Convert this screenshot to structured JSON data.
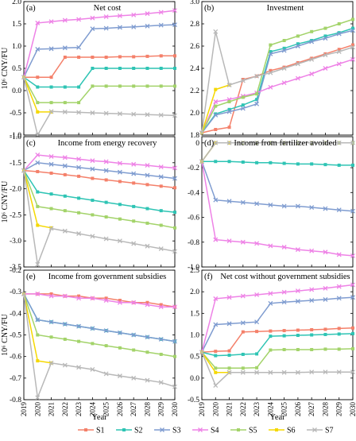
{
  "years": [
    "2019",
    "2020",
    "2021",
    "2022",
    "2023",
    "2024",
    "2025",
    "2026",
    "2027",
    "2028",
    "2029",
    "2030"
  ],
  "xlabel": "Year",
  "ylabel_unit": "10⁶ CNY/FU",
  "legend": [
    {
      "name": "S1",
      "color": "#f4806a",
      "marker": "square"
    },
    {
      "name": "S2",
      "color": "#2ec4b4",
      "marker": "square"
    },
    {
      "name": "S3",
      "color": "#7f9cd0",
      "marker": "x"
    },
    {
      "name": "S4",
      "color": "#ee82e6",
      "marker": "x"
    },
    {
      "name": "S5",
      "color": "#a3d36a",
      "marker": "square"
    },
    {
      "name": "S6",
      "color": "#f5d800",
      "marker": "square"
    },
    {
      "name": "S7",
      "color": "#b8b8b8",
      "marker": "x"
    }
  ],
  "chart_data": [
    {
      "panel": "(a)",
      "title": "Net cost",
      "type": "line",
      "ylim": [
        -1.0,
        2.0
      ],
      "yticks": [
        "-1.0",
        "-0.5",
        "0.0",
        "0.5",
        "1.0",
        "1.5",
        "2.0"
      ],
      "show_ylabel": true,
      "show_xticks": false,
      "series": [
        {
          "name": "S1",
          "values": [
            0.3,
            0.3,
            0.3,
            0.75,
            0.75,
            0.75,
            0.75,
            0.76,
            0.76,
            0.77,
            0.78,
            0.78
          ]
        },
        {
          "name": "S2",
          "values": [
            0.3,
            0.08,
            0.08,
            0.08,
            0.08,
            0.5,
            0.5,
            0.5,
            0.5,
            0.5,
            0.5,
            0.5
          ]
        },
        {
          "name": "S3",
          "values": [
            0.3,
            0.93,
            0.94,
            0.96,
            0.97,
            1.39,
            1.4,
            1.42,
            1.43,
            1.45,
            1.47,
            1.48
          ]
        },
        {
          "name": "S4",
          "values": [
            0.3,
            1.52,
            1.55,
            1.58,
            1.6,
            1.63,
            1.66,
            1.68,
            1.7,
            1.73,
            1.76,
            1.8
          ]
        },
        {
          "name": "S5",
          "values": [
            0.3,
            -0.27,
            -0.27,
            -0.27,
            -0.27,
            0.1,
            0.1,
            0.1,
            0.1,
            0.1,
            0.1,
            0.1
          ]
        },
        {
          "name": "S6",
          "values": [
            0.3,
            -0.48,
            -0.48
          ]
        },
        {
          "name": "S7",
          "values": [
            0.3,
            -1.0,
            -0.47,
            -0.48,
            -0.49,
            -0.5,
            -0.51,
            -0.52,
            -0.53,
            -0.54,
            -0.55,
            -0.56
          ]
        }
      ]
    },
    {
      "panel": "(b)",
      "title": "Investment",
      "type": "line",
      "ylim": [
        1.8,
        3.0
      ],
      "yticks": [
        "1.8",
        "2.0",
        "2.2",
        "2.4",
        "2.6",
        "2.8",
        "3.0"
      ],
      "show_ylabel": false,
      "show_xticks": false,
      "series": [
        {
          "name": "S1",
          "values": [
            1.82,
            1.85,
            1.87,
            2.3,
            2.33,
            2.38,
            2.41,
            2.45,
            2.49,
            2.53,
            2.57,
            2.61
          ]
        },
        {
          "name": "S2",
          "values": [
            1.82,
            1.99,
            2.03,
            2.07,
            2.12,
            2.55,
            2.58,
            2.62,
            2.65,
            2.69,
            2.72,
            2.76
          ]
        },
        {
          "name": "S3",
          "values": [
            1.82,
            1.98,
            2.01,
            2.04,
            2.08,
            2.53,
            2.56,
            2.6,
            2.64,
            2.67,
            2.71,
            2.74
          ]
        },
        {
          "name": "S4",
          "values": [
            1.82,
            2.1,
            2.12,
            2.15,
            2.18,
            2.23,
            2.27,
            2.31,
            2.35,
            2.4,
            2.44,
            2.48
          ]
        },
        {
          "name": "S5",
          "values": [
            1.82,
            2.06,
            2.1,
            2.14,
            2.17,
            2.61,
            2.65,
            2.69,
            2.73,
            2.76,
            2.8,
            2.84
          ]
        },
        {
          "name": "S6",
          "values": [
            1.82,
            2.21,
            2.25
          ]
        },
        {
          "name": "S7",
          "values": [
            1.82,
            2.73,
            2.25,
            2.29,
            2.33,
            2.36,
            2.4,
            2.44,
            2.48,
            2.52,
            2.55,
            2.59
          ]
        }
      ]
    },
    {
      "panel": "(c)",
      "title": "Income from energy recovery",
      "type": "line",
      "ylim": [
        -3.5,
        -1.0
      ],
      "yticks": [
        "-3.5",
        "-3.0",
        "-2.5",
        "-2.0",
        "-1.5",
        "-1.0"
      ],
      "show_ylabel": true,
      "show_xticks": false,
      "series": [
        {
          "name": "S1",
          "values": [
            -1.65,
            -1.67,
            -1.7,
            -1.73,
            -1.76,
            -1.8,
            -1.83,
            -1.86,
            -1.89,
            -1.92,
            -1.95,
            -1.98
          ]
        },
        {
          "name": "S2",
          "values": [
            -1.65,
            -2.06,
            -2.1,
            -2.14,
            -2.18,
            -2.22,
            -2.26,
            -2.3,
            -2.34,
            -2.38,
            -2.42,
            -2.45
          ]
        },
        {
          "name": "S3",
          "values": [
            -1.65,
            -1.5,
            -1.53,
            -1.56,
            -1.59,
            -1.62,
            -1.65,
            -1.68,
            -1.71,
            -1.74,
            -1.77,
            -1.8
          ]
        },
        {
          "name": "S4",
          "values": [
            -1.65,
            -1.35,
            -1.38,
            -1.4,
            -1.43,
            -1.46,
            -1.48,
            -1.51,
            -1.53,
            -1.55,
            -1.58,
            -1.6
          ]
        },
        {
          "name": "S5",
          "values": [
            -1.65,
            -2.34,
            -2.38,
            -2.42,
            -2.46,
            -2.5,
            -2.54,
            -2.58,
            -2.62,
            -2.66,
            -2.7,
            -2.75
          ]
        },
        {
          "name": "S6",
          "values": [
            -1.65,
            -2.7,
            -2.75
          ]
        },
        {
          "name": "S7",
          "values": [
            -1.65,
            -3.45,
            -2.76,
            -2.81,
            -2.86,
            -2.91,
            -2.96,
            -3.0,
            -3.05,
            -3.1,
            -3.15,
            -3.2
          ]
        }
      ]
    },
    {
      "panel": "(d)",
      "title": "Income from fertilizer avoided",
      "type": "line",
      "ylim": [
        -1.0,
        0.05
      ],
      "yticks": [
        "-1.0",
        "-0.8",
        "-0.6",
        "-0.4",
        "-0.2",
        "0"
      ],
      "show_ylabel": false,
      "show_xticks": false,
      "series": [
        {
          "name": "S1",
          "values": [
            -0.15,
            0,
            0,
            0,
            0,
            0,
            0,
            0,
            0,
            0,
            0,
            0
          ]
        },
        {
          "name": "S2",
          "values": [
            -0.15,
            -0.15,
            -0.15,
            -0.155,
            -0.16,
            -0.16,
            -0.165,
            -0.17,
            -0.17,
            -0.175,
            -0.18,
            -0.18
          ]
        },
        {
          "name": "S3",
          "values": [
            -0.15,
            -0.46,
            -0.47,
            -0.48,
            -0.49,
            -0.5,
            -0.51,
            -0.51,
            -0.52,
            -0.53,
            -0.54,
            -0.55
          ]
        },
        {
          "name": "S4",
          "values": [
            -0.15,
            -0.78,
            -0.79,
            -0.8,
            -0.81,
            -0.83,
            -0.84,
            -0.86,
            -0.87,
            -0.88,
            -0.9,
            -0.91
          ]
        },
        {
          "name": "S5",
          "values": [
            -0.15,
            0,
            0,
            0,
            0,
            0,
            0,
            0,
            0,
            0,
            0,
            0
          ]
        },
        {
          "name": "S6",
          "values": [
            -0.15,
            0,
            0
          ]
        },
        {
          "name": "S7",
          "values": [
            -0.15,
            0,
            0,
            0,
            0,
            0,
            0,
            0,
            0,
            0,
            0,
            0
          ]
        }
      ]
    },
    {
      "panel": "(e)",
      "title": "Income from government subsidies",
      "type": "line",
      "ylim": [
        -0.8,
        -0.2
      ],
      "yticks": [
        "-0.8",
        "-0.7",
        "-0.6",
        "-0.5",
        "-0.4",
        "-0.3",
        "-0.2"
      ],
      "show_ylabel": true,
      "show_xticks": true,
      "series": [
        {
          "name": "S1",
          "values": [
            -0.31,
            -0.31,
            -0.31,
            -0.32,
            -0.32,
            -0.33,
            -0.33,
            -0.34,
            -0.35,
            -0.35,
            -0.36,
            -0.37
          ]
        },
        {
          "name": "S2",
          "values": [
            -0.31,
            -0.43,
            -0.44,
            -0.45,
            -0.46,
            -0.47,
            -0.48,
            -0.49,
            -0.5,
            -0.51,
            -0.52,
            -0.53
          ]
        },
        {
          "name": "S3",
          "values": [
            -0.31,
            -0.43,
            -0.44,
            -0.45,
            -0.46,
            -0.47,
            -0.48,
            -0.49,
            -0.5,
            -0.51,
            -0.52,
            -0.53
          ]
        },
        {
          "name": "S4",
          "values": [
            -0.31,
            -0.31,
            -0.32,
            -0.32,
            -0.33,
            -0.33,
            -0.34,
            -0.35,
            -0.35,
            -0.36,
            -0.37,
            -0.37
          ]
        },
        {
          "name": "S5",
          "values": [
            -0.31,
            -0.5,
            -0.51,
            -0.52,
            -0.53,
            -0.54,
            -0.55,
            -0.56,
            -0.57,
            -0.58,
            -0.59,
            -0.6
          ]
        },
        {
          "name": "S6",
          "values": [
            -0.31,
            -0.62,
            -0.63
          ]
        },
        {
          "name": "S7",
          "values": [
            -0.31,
            -0.79,
            -0.63,
            -0.64,
            -0.65,
            -0.66,
            -0.68,
            -0.69,
            -0.7,
            -0.71,
            -0.72,
            -0.74
          ]
        }
      ]
    },
    {
      "panel": "(f)",
      "title": "Net cost without government subsidies",
      "type": "line",
      "ylim": [
        -0.5,
        2.5
      ],
      "yticks": [
        "-0.5",
        "0.0",
        "0.5",
        "1.0",
        "1.5",
        "2.0",
        "2.5"
      ],
      "show_ylabel": false,
      "show_xticks": true,
      "series": [
        {
          "name": "S1",
          "values": [
            0.6,
            0.62,
            0.63,
            1.07,
            1.08,
            1.09,
            1.1,
            1.11,
            1.12,
            1.13,
            1.15,
            1.16
          ]
        },
        {
          "name": "S2",
          "values": [
            0.6,
            0.52,
            0.53,
            0.55,
            0.56,
            0.97,
            0.98,
            0.99,
            1.0,
            1.01,
            1.02,
            1.03
          ]
        },
        {
          "name": "S3",
          "values": [
            0.6,
            1.24,
            1.26,
            1.28,
            1.3,
            1.73,
            1.76,
            1.78,
            1.8,
            1.82,
            1.85,
            1.87
          ]
        },
        {
          "name": "S4",
          "values": [
            0.6,
            1.84,
            1.87,
            1.9,
            1.93,
            1.96,
            1.99,
            2.02,
            2.05,
            2.08,
            2.12,
            2.16
          ]
        },
        {
          "name": "S5",
          "values": [
            0.6,
            0.23,
            0.23,
            0.23,
            0.24,
            0.65,
            0.66,
            0.66,
            0.66,
            0.67,
            0.67,
            0.68
          ]
        },
        {
          "name": "S6",
          "values": [
            0.6,
            0.13,
            0.13
          ]
        },
        {
          "name": "S7",
          "values": [
            0.6,
            -0.17,
            0.13,
            0.13,
            0.13,
            0.13,
            0.13,
            0.13,
            0.14,
            0.14,
            0.14,
            0.14
          ]
        }
      ]
    }
  ]
}
